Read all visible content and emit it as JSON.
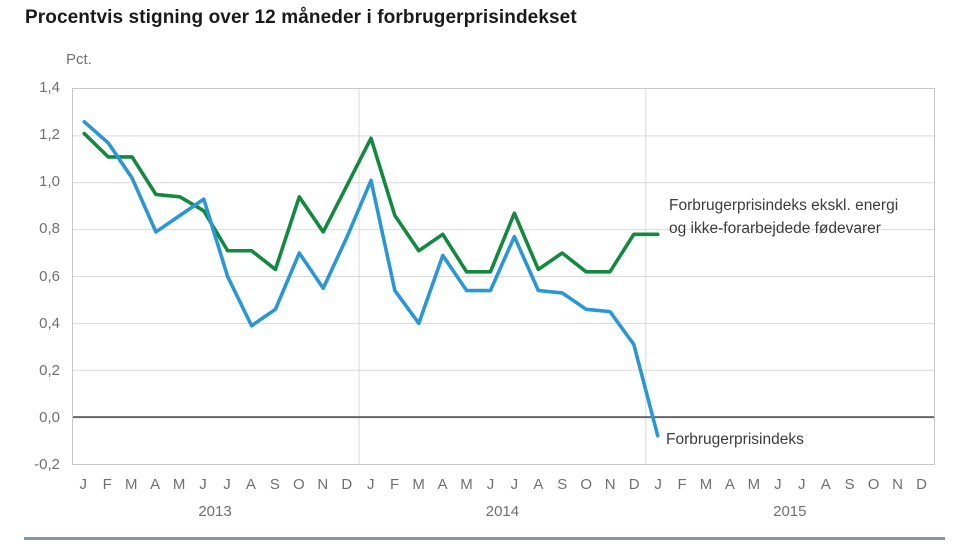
{
  "title": "Procentvis stigning over 12 måneder i forbrugerprisindekset",
  "axis": {
    "unit_label": "Pct."
  },
  "annotations": {
    "core_label_line1": "Forbrugerprisindeks ekskl. energi",
    "core_label_line2": "og ikke-forarbejdede fødevarer",
    "cpi_label": "Forbrugerprisindeks"
  },
  "colors": {
    "cpi_line": "#2a97d4",
    "core_line": "#12893e",
    "grid": "#d9d9d9",
    "zero_line": "#666666",
    "axis_text": "#707070",
    "annotation_text": "#3c3c3c",
    "title_text": "#1a1a1a",
    "plot_border": "#c8c8c8",
    "footer_bar": "#7e99a7"
  },
  "chart_data": {
    "type": "line",
    "title": "Procentvis stigning over 12 måneder i forbrugerprisindekset",
    "ylabel": "Pct.",
    "ylim": [
      -0.2,
      1.4
    ],
    "ytick_values": [
      1.4,
      1.2,
      1.0,
      0.8,
      0.6,
      0.4,
      0.2,
      0.0,
      -0.2
    ],
    "ytick_labels": [
      "1,4",
      "1,2",
      "1,0",
      "0,8",
      "0,6",
      "0,4",
      "0,2",
      "0,0",
      "-0,2"
    ],
    "month_letters": [
      "J",
      "F",
      "M",
      "A",
      "M",
      "J",
      "J",
      "A",
      "S",
      "O",
      "N",
      "D"
    ],
    "years": [
      "2013",
      "2014",
      "2015"
    ],
    "x_axis_months_total": 36,
    "grid": "horizontal gridlines every 0.2; light vertical separators at year boundaries; dark line at 0.0",
    "legend_position": "inline text annotations at right end of lines",
    "series": [
      {
        "name": "Forbrugerprisindeks",
        "color_key": "cpi_line",
        "start_month": "2013-01",
        "values": [
          1.26,
          1.17,
          1.02,
          0.79,
          0.86,
          0.93,
          0.6,
          0.39,
          0.46,
          0.7,
          0.55,
          0.77,
          1.01,
          0.54,
          0.4,
          0.69,
          0.54,
          0.54,
          0.77,
          0.54,
          0.53,
          0.46,
          0.45,
          0.31,
          -0.08
        ]
      },
      {
        "name": "Forbrugerprisindeks ekskl. energi og ikke-forarbejdede fødevarer",
        "color_key": "core_line",
        "start_month": "2013-01",
        "values": [
          1.21,
          1.11,
          1.11,
          0.95,
          0.94,
          0.88,
          0.71,
          0.71,
          0.63,
          0.94,
          0.79,
          0.99,
          1.19,
          0.86,
          0.71,
          0.78,
          0.62,
          0.62,
          0.87,
          0.63,
          0.7,
          0.62,
          0.62,
          0.78,
          0.78
        ]
      }
    ]
  }
}
